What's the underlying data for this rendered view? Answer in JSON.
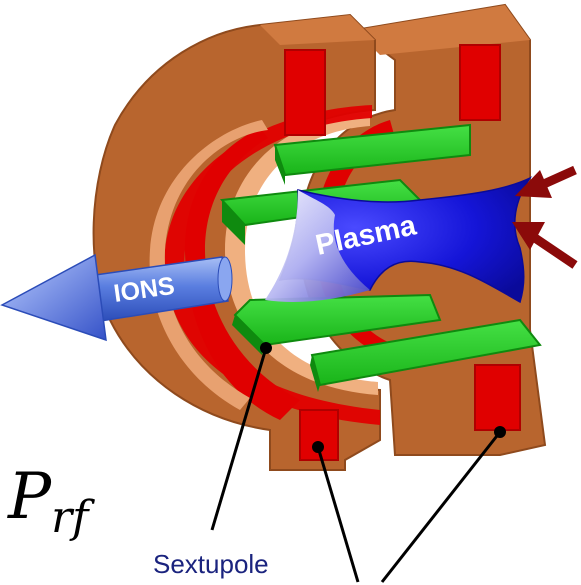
{
  "labels": {
    "ions": "IONS",
    "plasma": "Plasma",
    "power_symbol": "P",
    "power_subscript": "rf",
    "sextupole": "Sextupole"
  },
  "colors": {
    "coil_copper": "#b8652e",
    "coil_copper_dark": "#8f4a1d",
    "coil_copper_light": "#e8a170",
    "coil_core_red": "#e00000",
    "sextupole_green": "#1ec81e",
    "sextupole_green_dark": "#0f8a0f",
    "plasma_blue": "#1a1ae6",
    "ions_arrow_blue": "#5a7ee0",
    "rf_arrow": "#8b0a0a",
    "sextupole_text": "#1a237e"
  }
}
